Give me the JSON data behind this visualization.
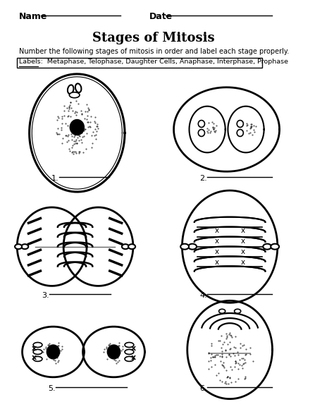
{
  "title": "Stages of Mitosis",
  "name_label": "Name",
  "date_label": "Date",
  "instruction": "Number the following stages of mitosis in order and label each stage properly.",
  "labels_text": "Labels:  Metaphase, Telophase, Daughter Cells, Anaphase, Interphase, Prophase",
  "numbers": [
    "1.",
    "2.",
    "3.",
    "4.",
    "5.",
    "6."
  ],
  "bg_color": "#ffffff",
  "line_color": "#000000"
}
